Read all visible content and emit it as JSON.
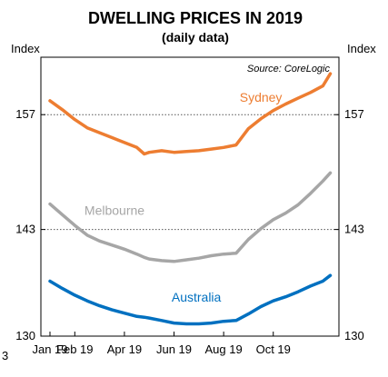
{
  "page_number": "3",
  "chart_data": {
    "type": "line",
    "title": "DWELLING PRICES IN 2019",
    "subtitle": "(daily data)",
    "source": "Source: CoreLogic",
    "ylabel_left": "Index",
    "ylabel_right": "Index",
    "ylim": [
      130,
      164
    ],
    "yticks": [
      130,
      143,
      157
    ],
    "grid": "dotted at 143 and 157",
    "xlim": [
      0,
      11.5
    ],
    "xticks": [
      0,
      1,
      3,
      5,
      7,
      9
    ],
    "xtick_labels": [
      "Jan 19",
      "Feb 19",
      "Apr 19",
      "Jun 19",
      "Aug 19",
      "Oct 19"
    ],
    "x": [
      0,
      0.5,
      1,
      1.5,
      2,
      2.5,
      3,
      3.5,
      3.8,
      4,
      4.5,
      5,
      5.5,
      6,
      6.5,
      7,
      7.5,
      8,
      8.5,
      9,
      9.5,
      10,
      10.5,
      11,
      11.3
    ],
    "series": [
      {
        "name": "Sydney",
        "color": "#ED7D31",
        "values": [
          158.7,
          157.6,
          156.4,
          155.4,
          154.8,
          154.2,
          153.6,
          153.0,
          152.2,
          152.4,
          152.6,
          152.4,
          152.5,
          152.6,
          152.8,
          153.0,
          153.3,
          155.3,
          156.5,
          157.5,
          158.3,
          159.0,
          159.7,
          160.5,
          162.0
        ]
      },
      {
        "name": "Melbourne",
        "color": "#A6A6A6",
        "values": [
          146.1,
          144.8,
          143.5,
          142.3,
          141.6,
          141.1,
          140.6,
          140.0,
          139.6,
          139.4,
          139.2,
          139.1,
          139.3,
          139.5,
          139.8,
          140.0,
          140.1,
          141.8,
          143.1,
          144.2,
          145.0,
          146.0,
          147.4,
          148.9,
          149.9
        ]
      },
      {
        "name": "Australia",
        "color": "#0070C0",
        "values": [
          136.7,
          135.8,
          135.0,
          134.3,
          133.7,
          133.2,
          132.8,
          132.4,
          132.3,
          132.2,
          131.9,
          131.6,
          131.5,
          131.5,
          131.6,
          131.8,
          131.9,
          132.7,
          133.6,
          134.3,
          134.8,
          135.4,
          136.1,
          136.7,
          137.4
        ]
      }
    ]
  }
}
